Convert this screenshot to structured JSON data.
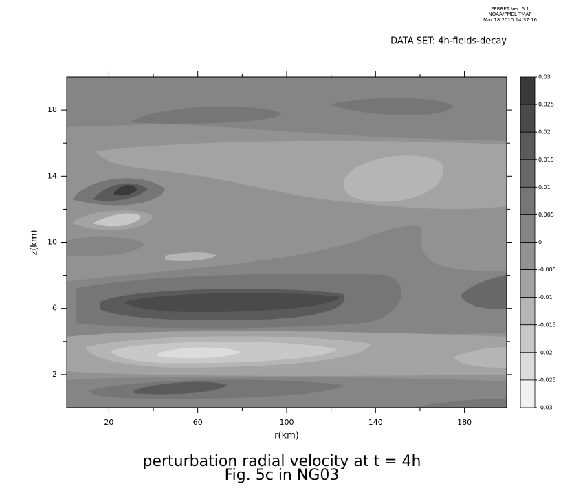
{
  "chart_data": {
    "type": "contour",
    "header": [
      "FERRET Ver. 6.1",
      "NOAA/PMEL TMAP",
      "Mar 18 2010 14:37:16"
    ],
    "dataset": "DATA SET: 4h-fields-decay",
    "title": "perturbation radial velocity at t = 4h",
    "subtitle": "Fig. 5c in NG03",
    "xlabel": "r(km)",
    "ylabel": "z(km)",
    "xlim": [
      1,
      199
    ],
    "xticks": [
      20,
      60,
      100,
      140,
      180
    ],
    "xminor": [
      40,
      80,
      120,
      160
    ],
    "ylim": [
      0,
      20
    ],
    "yticks": [
      2,
      6,
      10,
      14,
      18
    ],
    "yminor": [
      4,
      8,
      12,
      16
    ],
    "levels": [
      0.03,
      0.025,
      0.02,
      0.015,
      0.01,
      0.005,
      0,
      -0.005,
      -0.01,
      -0.015,
      -0.02,
      -0.025,
      -0.03
    ],
    "level_colors": [
      "#3a3a3a",
      "#4a4a4a",
      "#5a5a5a",
      "#686868",
      "#767676",
      "#858585",
      "#929292",
      "#a3a3a3",
      "#b5b5b5",
      "#c8c8c8",
      "#dcdcdc",
      "#f2f2f2"
    ]
  }
}
